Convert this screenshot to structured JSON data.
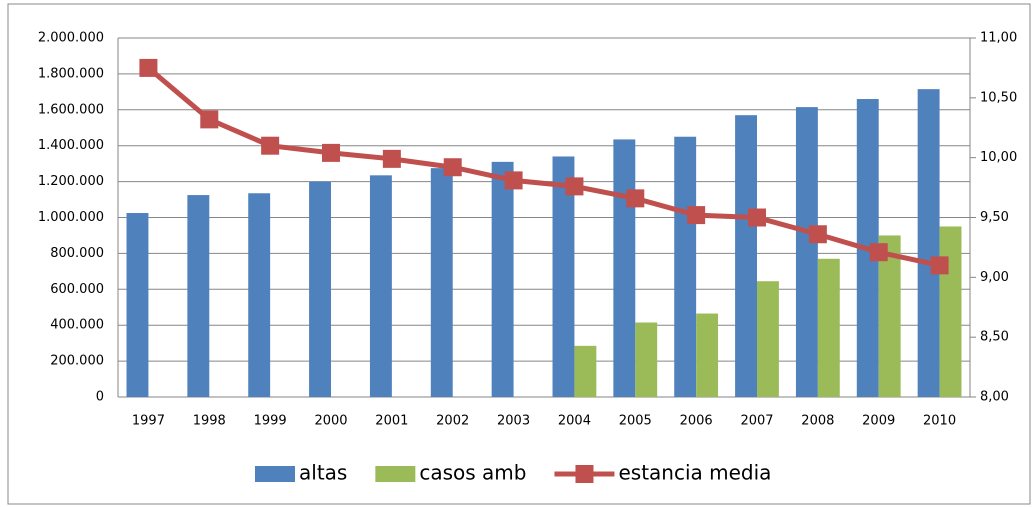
{
  "chart_data": {
    "type": "bar-line",
    "categories": [
      "1997",
      "1998",
      "1999",
      "2000",
      "2001",
      "2002",
      "2003",
      "2004",
      "2005",
      "2006",
      "2007",
      "2008",
      "2009",
      "2010"
    ],
    "series": [
      {
        "name": "altas",
        "type": "bar",
        "color": "#4f81bd",
        "values": [
          1025000,
          1125000,
          1135000,
          1200000,
          1235000,
          1275000,
          1310000,
          1340000,
          1435000,
          1450000,
          1570000,
          1615000,
          1660000,
          1715000
        ]
      },
      {
        "name": "casos amb",
        "type": "bar",
        "color": "#9bbb59",
        "values": [
          null,
          null,
          null,
          null,
          null,
          null,
          null,
          285000,
          415000,
          465000,
          645000,
          770000,
          900000,
          950000
        ]
      },
      {
        "name": "estancia media",
        "type": "line",
        "axis": "y2",
        "color": "#c0504d",
        "values": [
          10.75,
          10.32,
          10.1,
          10.04,
          9.99,
          9.92,
          9.81,
          9.76,
          9.66,
          9.52,
          9.5,
          9.36,
          9.21,
          9.1
        ]
      }
    ],
    "ylim": [
      0,
      2000000
    ],
    "yticks": [
      0,
      {
        "value": 200000,
        "label": "200.000"
      },
      {
        "value": 400000,
        "label": "400.000"
      },
      {
        "value": 600000,
        "label": "600.000"
      },
      {
        "value": 800000,
        "label": "800.000"
      },
      {
        "value": 1000000,
        "label": "1.000.000"
      },
      {
        "value": 1200000,
        "label": "1.200.000"
      },
      {
        "value": 1400000,
        "label": "1.400.000"
      },
      {
        "value": 1600000,
        "label": "1.600.000"
      },
      {
        "value": 1800000,
        "label": "1.800.000"
      },
      {
        "value": 2000000,
        "label": "2.000.000"
      }
    ],
    "y2lim": [
      8,
      11
    ],
    "y2ticks": [
      {
        "value": 8,
        "label": "8,00"
      },
      {
        "value": 8.5,
        "label": "8,50"
      },
      {
        "value": 9,
        "label": "9,00"
      },
      {
        "value": 9.5,
        "label": "9,50"
      },
      {
        "value": 10,
        "label": "10,00"
      },
      {
        "value": 10.5,
        "label": "10,50"
      },
      {
        "value": 11,
        "label": "11,00"
      }
    ],
    "grid": true,
    "legend": "bottom"
  }
}
